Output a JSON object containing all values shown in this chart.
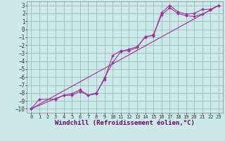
{
  "background_color": "#cce8e8",
  "grid_color": "#99bbbb",
  "line_color": "#993399",
  "xlim": [
    -0.5,
    23.5
  ],
  "ylim": [
    -10.5,
    3.5
  ],
  "xlabel": "Windchill (Refroidissement éolien,°C)",
  "xlabel_fontsize": 6.5,
  "xtick_fontsize": 5.0,
  "ytick_fontsize": 5.5,
  "xticks": [
    0,
    1,
    2,
    3,
    4,
    5,
    6,
    7,
    8,
    9,
    10,
    11,
    12,
    13,
    14,
    15,
    16,
    17,
    18,
    19,
    20,
    21,
    22,
    23
  ],
  "yticks": [
    3,
    2,
    1,
    0,
    -1,
    -2,
    -3,
    -4,
    -5,
    -6,
    -7,
    -8,
    -9,
    -10
  ],
  "line1_x": [
    0,
    1,
    3,
    4,
    5,
    6,
    7,
    8,
    9,
    10,
    11,
    12,
    13,
    14,
    15,
    16,
    17,
    18,
    19,
    20,
    21,
    22,
    23
  ],
  "line1_y": [
    -10,
    -8.8,
    -8.8,
    -8.3,
    -8.3,
    -7.8,
    -8.3,
    -8.0,
    -6.3,
    -3.3,
    -2.7,
    -2.7,
    -2.3,
    -0.9,
    -0.8,
    2.1,
    3.0,
    2.2,
    1.9,
    2.0,
    2.5,
    2.5,
    3.0
  ],
  "line2_x": [
    0,
    3,
    4,
    5,
    6,
    7,
    8,
    9,
    10,
    11,
    12,
    13,
    14,
    15,
    16,
    17,
    18,
    19,
    20,
    21,
    22,
    23
  ],
  "line2_y": [
    -10,
    -8.7,
    -8.3,
    -8.1,
    -7.6,
    -8.3,
    -8.1,
    -6.1,
    -4.2,
    -2.8,
    -2.5,
    -2.2,
    -1.0,
    -0.7,
    1.8,
    2.7,
    2.0,
    1.7,
    1.6,
    1.9,
    2.4,
    3.0
  ],
  "line3_x": [
    0,
    23
  ],
  "line3_y": [
    -10,
    3
  ]
}
